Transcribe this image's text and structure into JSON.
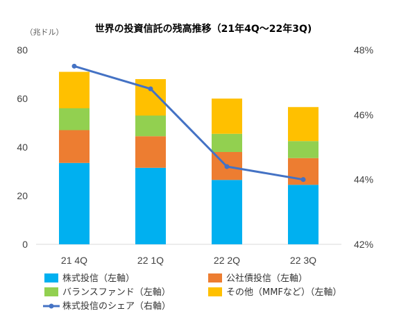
{
  "chart_data": {
    "type": "bar",
    "subtype": "stacked-bar-with-line",
    "title": "世界の投資信託の残高推移（21年4Q～22年3Q)",
    "left_axis_unit": "（兆ドル）",
    "categories": [
      "21 4Q",
      "22 1Q",
      "22 2Q",
      "22 3Q"
    ],
    "ylim_left": [
      0,
      80
    ],
    "yticks_left": [
      "0",
      "20",
      "40",
      "60",
      "80"
    ],
    "ylim_right": [
      42,
      48
    ],
    "yticks_right": [
      "42%",
      "44%",
      "46%",
      "48%"
    ],
    "grid": false,
    "legend_position": "bottom",
    "series": [
      {
        "name": "株式投信（左軸）",
        "axis": "left",
        "kind": "bar",
        "color": "#00B0F0",
        "values": [
          33.5,
          31.5,
          26.5,
          24.5
        ]
      },
      {
        "name": "公社債投信（左軸）",
        "axis": "left",
        "kind": "bar",
        "color": "#ED7D31",
        "values": [
          13.5,
          13.0,
          11.5,
          11.0
        ]
      },
      {
        "name": "バランスファンド（左軸）",
        "axis": "left",
        "kind": "bar",
        "color": "#92D050",
        "values": [
          9.0,
          8.5,
          7.5,
          7.0
        ]
      },
      {
        "name": "その他（MMFなど）（左軸）",
        "axis": "left",
        "kind": "bar",
        "color": "#FFC000",
        "values": [
          15.0,
          15.0,
          14.5,
          14.0
        ]
      },
      {
        "name": "株式投信のシェア（右軸）",
        "axis": "right",
        "kind": "line",
        "color": "#4472C4",
        "values": [
          47.5,
          46.8,
          44.4,
          44.0
        ]
      }
    ]
  }
}
